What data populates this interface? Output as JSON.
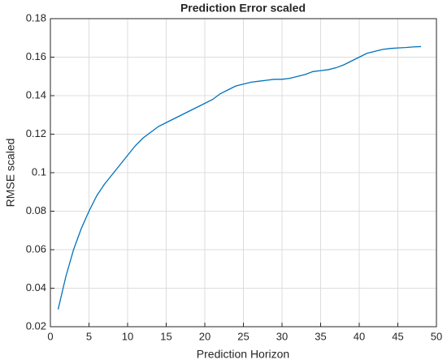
{
  "chart_data": {
    "type": "line",
    "title": "Prediction Error scaled",
    "x_label": "Prediction Horizon",
    "y_label": "RMSE scaled",
    "x": [
      1,
      2,
      3,
      4,
      5,
      6,
      7,
      8,
      9,
      10,
      11,
      12,
      13,
      14,
      15,
      16,
      17,
      18,
      19,
      20,
      21,
      22,
      23,
      24,
      25,
      26,
      27,
      28,
      29,
      30,
      31,
      32,
      33,
      34,
      35,
      36,
      37,
      38,
      39,
      40,
      41,
      42,
      43,
      44,
      45,
      46,
      47,
      48
    ],
    "series": [
      {
        "color": "#0072bd",
        "values": [
          0.029,
          0.046,
          0.06,
          0.071,
          0.08,
          0.088,
          0.094,
          0.099,
          0.104,
          0.109,
          0.114,
          0.118,
          0.121,
          0.124,
          0.126,
          0.128,
          0.13,
          0.132,
          0.134,
          0.136,
          0.138,
          0.141,
          0.143,
          0.145,
          0.146,
          0.147,
          0.1475,
          0.148,
          0.1485,
          0.1485,
          0.149,
          0.15,
          0.151,
          0.1525,
          0.153,
          0.1535,
          0.1545,
          0.156,
          0.158,
          0.16,
          0.162,
          0.163,
          0.164,
          0.1645,
          0.1648,
          0.165,
          0.1653,
          0.1655
        ]
      }
    ],
    "xlim": [
      0,
      50
    ],
    "xticks": [
      0,
      5,
      10,
      15,
      20,
      25,
      30,
      35,
      40,
      45,
      50
    ],
    "ylim": [
      0.02,
      0.18
    ],
    "yticks": [
      0.02,
      0.04,
      0.06,
      0.08,
      0.1,
      0.12,
      0.14,
      0.16,
      0.18
    ],
    "grid": true
  }
}
